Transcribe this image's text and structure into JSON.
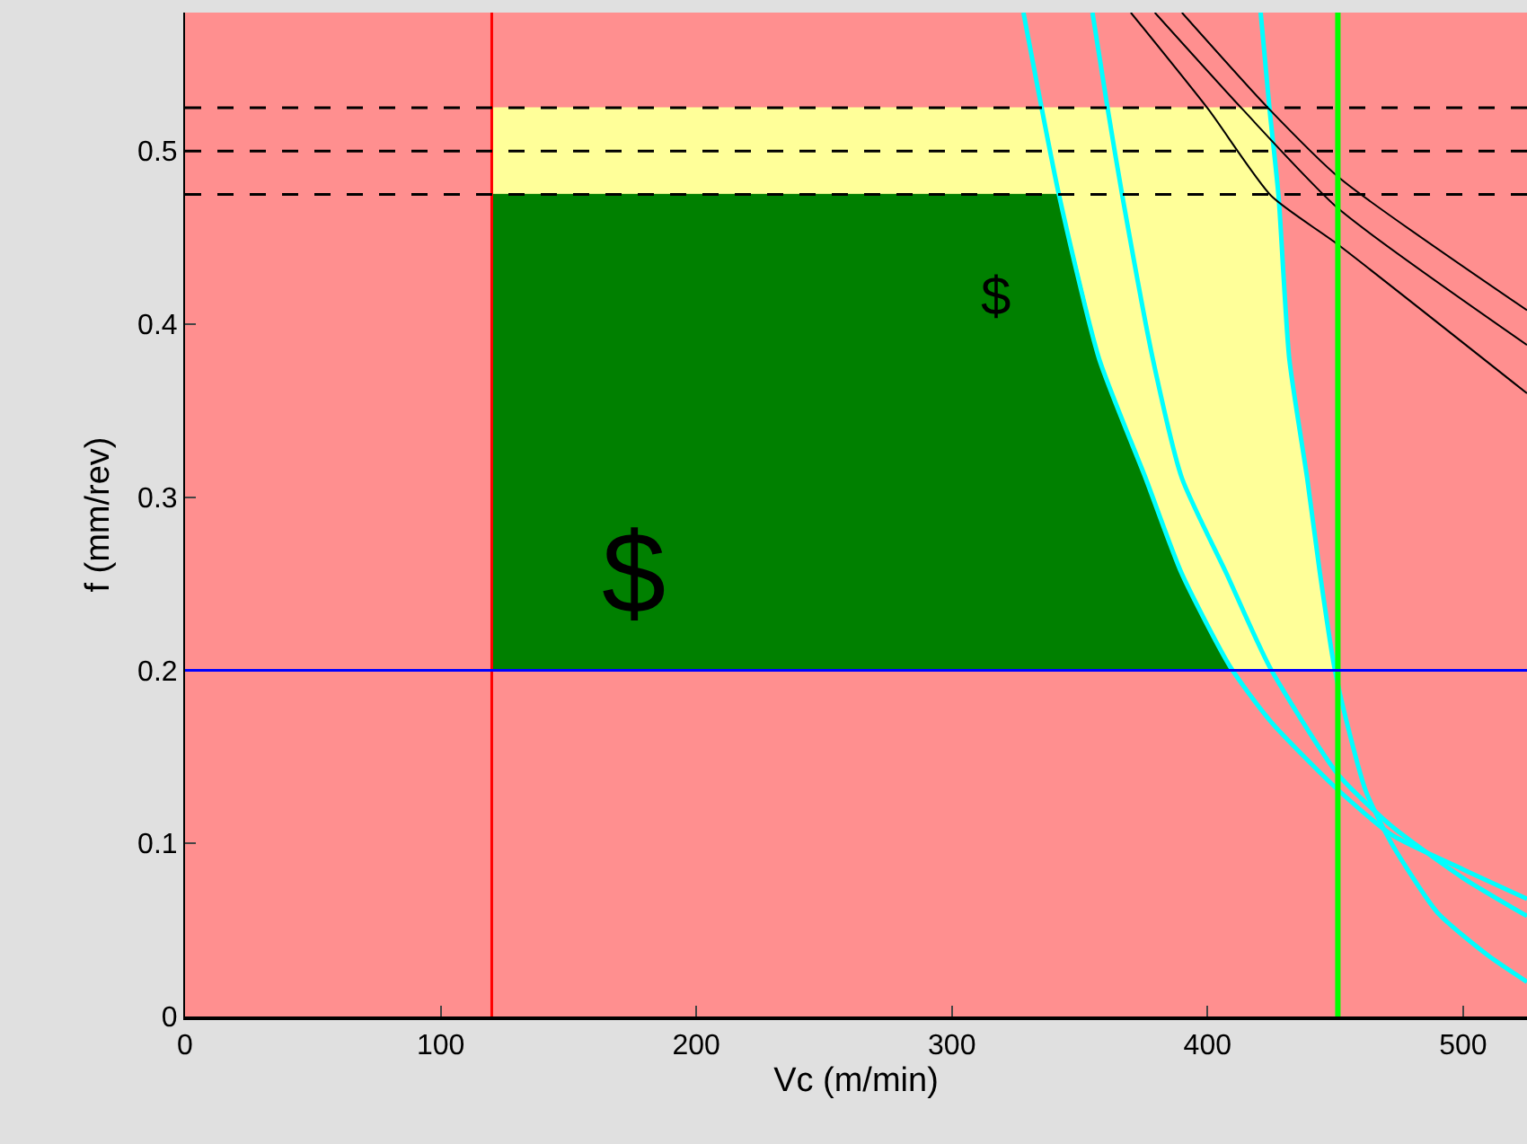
{
  "chart_data": {
    "type": "line",
    "xlabel": "Vc (m/min)",
    "ylabel": "f (mm/rev)",
    "xlim": [
      0,
      525
    ],
    "ylim": [
      0,
      0.58
    ],
    "xticks": [
      0,
      100,
      200,
      300,
      400,
      500
    ],
    "yticks": [
      0,
      0.1,
      0.2,
      0.3,
      0.4,
      0.5
    ],
    "grid": false,
    "bands": [
      {
        "axis": "y",
        "from": 0,
        "to": 0.58,
        "color": "#ff8f8f"
      }
    ],
    "series": [
      {
        "type": "area",
        "color": "#ffff99",
        "x": [
          120,
          424.3,
          427.8,
          432,
          439,
          444,
          449.6,
          408.9,
          389.9,
          375.8,
          357.6,
          342,
          120
        ],
        "values": [
          0.525,
          0.525,
          0.474,
          0.38,
          0.311,
          0.256,
          0.2,
          0.2,
          0.256,
          0.311,
          0.38,
          0.475,
          0.475
        ]
      },
      {
        "type": "area",
        "color": "#008000",
        "x": [
          120,
          342,
          357.6,
          375.8,
          389.9,
          408.9,
          120
        ],
        "values": [
          0.475,
          0.475,
          0.38,
          0.311,
          0.256,
          0.2,
          0.2
        ]
      },
      {
        "color": "#00ffff",
        "x": [
          328,
          342,
          357.6,
          375.8,
          389.9,
          408.9,
          425,
          451,
          472,
          500,
          525
        ],
        "values": [
          0.58,
          0.474,
          0.38,
          0.311,
          0.256,
          0.202,
          0.17,
          0.131,
          0.105,
          0.085,
          0.068
        ]
      },
      {
        "color": "#00ffff",
        "x": [
          355,
          361,
          366.7,
          378.6,
          390,
          407.4,
          424.3,
          451,
          472,
          500,
          525
        ],
        "values": [
          0.58,
          0.524,
          0.474,
          0.38,
          0.311,
          0.256,
          0.202,
          0.14,
          0.11,
          0.08,
          0.058
        ]
      },
      {
        "color": "#00ffff",
        "x": [
          420.8,
          424.3,
          427.8,
          432,
          439,
          444,
          449.6,
          454.5,
          462,
          472,
          490,
          510,
          525
        ],
        "values": [
          0.58,
          0.524,
          0.474,
          0.38,
          0.311,
          0.256,
          0.202,
          0.17,
          0.13,
          0.1,
          0.06,
          0.035,
          0.02
        ]
      },
      {
        "color": "#000000",
        "x": [
          370,
          400.4,
          425,
          451,
          525
        ],
        "values": [
          0.58,
          0.524,
          0.474,
          0.446,
          0.36
        ]
      },
      {
        "color": "#000000",
        "x": [
          379.4,
          413.8,
          451,
          525
        ],
        "values": [
          0.58,
          0.524,
          0.467,
          0.388
        ]
      },
      {
        "color": "#000000",
        "x": [
          390,
          423,
          452,
          525
        ],
        "values": [
          0.58,
          0.526,
          0.484,
          0.408
        ]
      }
    ],
    "ref_lines": [
      {
        "axis": "x",
        "value": 120,
        "color": "#ff0000"
      },
      {
        "axis": "x",
        "value": 451,
        "color": "#00ff00"
      },
      {
        "axis": "y",
        "value": 0.2,
        "color": "#0000ff"
      },
      {
        "axis": "y",
        "value": 0.525,
        "color": "#000000",
        "line_style": "dashed"
      },
      {
        "axis": "y",
        "value": 0.5,
        "color": "#000000",
        "line_style": "dashed"
      },
      {
        "axis": "y",
        "value": 0.475,
        "color": "#000000",
        "line_style": "dashed"
      }
    ],
    "annotations": [
      "$",
      "$"
    ]
  }
}
